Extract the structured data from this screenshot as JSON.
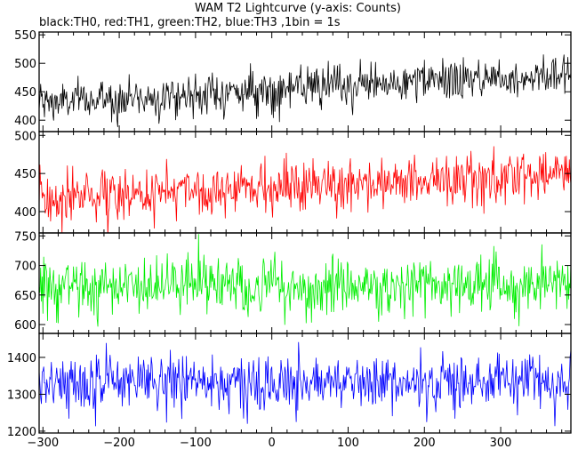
{
  "chart_data": {
    "type": "line",
    "title": "WAM T2 Lightcurve (y-axis: Counts)",
    "subtitle": "black:TH0, red:TH1, green:TH2, blue:TH3 ,1bin = 1s",
    "xlabel": "",
    "ylabel": "",
    "xlim": [
      -305,
      392
    ],
    "x_ticks": [
      -300,
      -200,
      -100,
      0,
      100,
      200,
      300
    ],
    "bin_seconds": 1,
    "panels": [
      {
        "name": "TH0",
        "color": "#000000",
        "ylim": [
          380,
          555
        ],
        "y_ticks": [
          400,
          450,
          500,
          550
        ],
        "trend": {
          "start": 430,
          "end": 482
        },
        "noise_amplitude": 18
      },
      {
        "name": "TH1",
        "color": "#ff0000",
        "ylim": [
          372,
          505
        ],
        "y_ticks": [
          400,
          450,
          500
        ],
        "trend": {
          "start": 418,
          "end": 448
        },
        "noise_amplitude": 17
      },
      {
        "name": "TH2",
        "color": "#00ee00",
        "ylim": [
          585,
          755
        ],
        "y_ticks": [
          600,
          650,
          700,
          750
        ],
        "trend": {
          "start": 665,
          "end": 665
        },
        "noise_amplitude": 25
      },
      {
        "name": "TH3",
        "color": "#0000ff",
        "ylim": [
          1195,
          1465
        ],
        "y_ticks": [
          1200,
          1300,
          1400
        ],
        "trend": {
          "start": 1330,
          "end": 1340
        },
        "noise_amplitude": 38
      }
    ]
  }
}
